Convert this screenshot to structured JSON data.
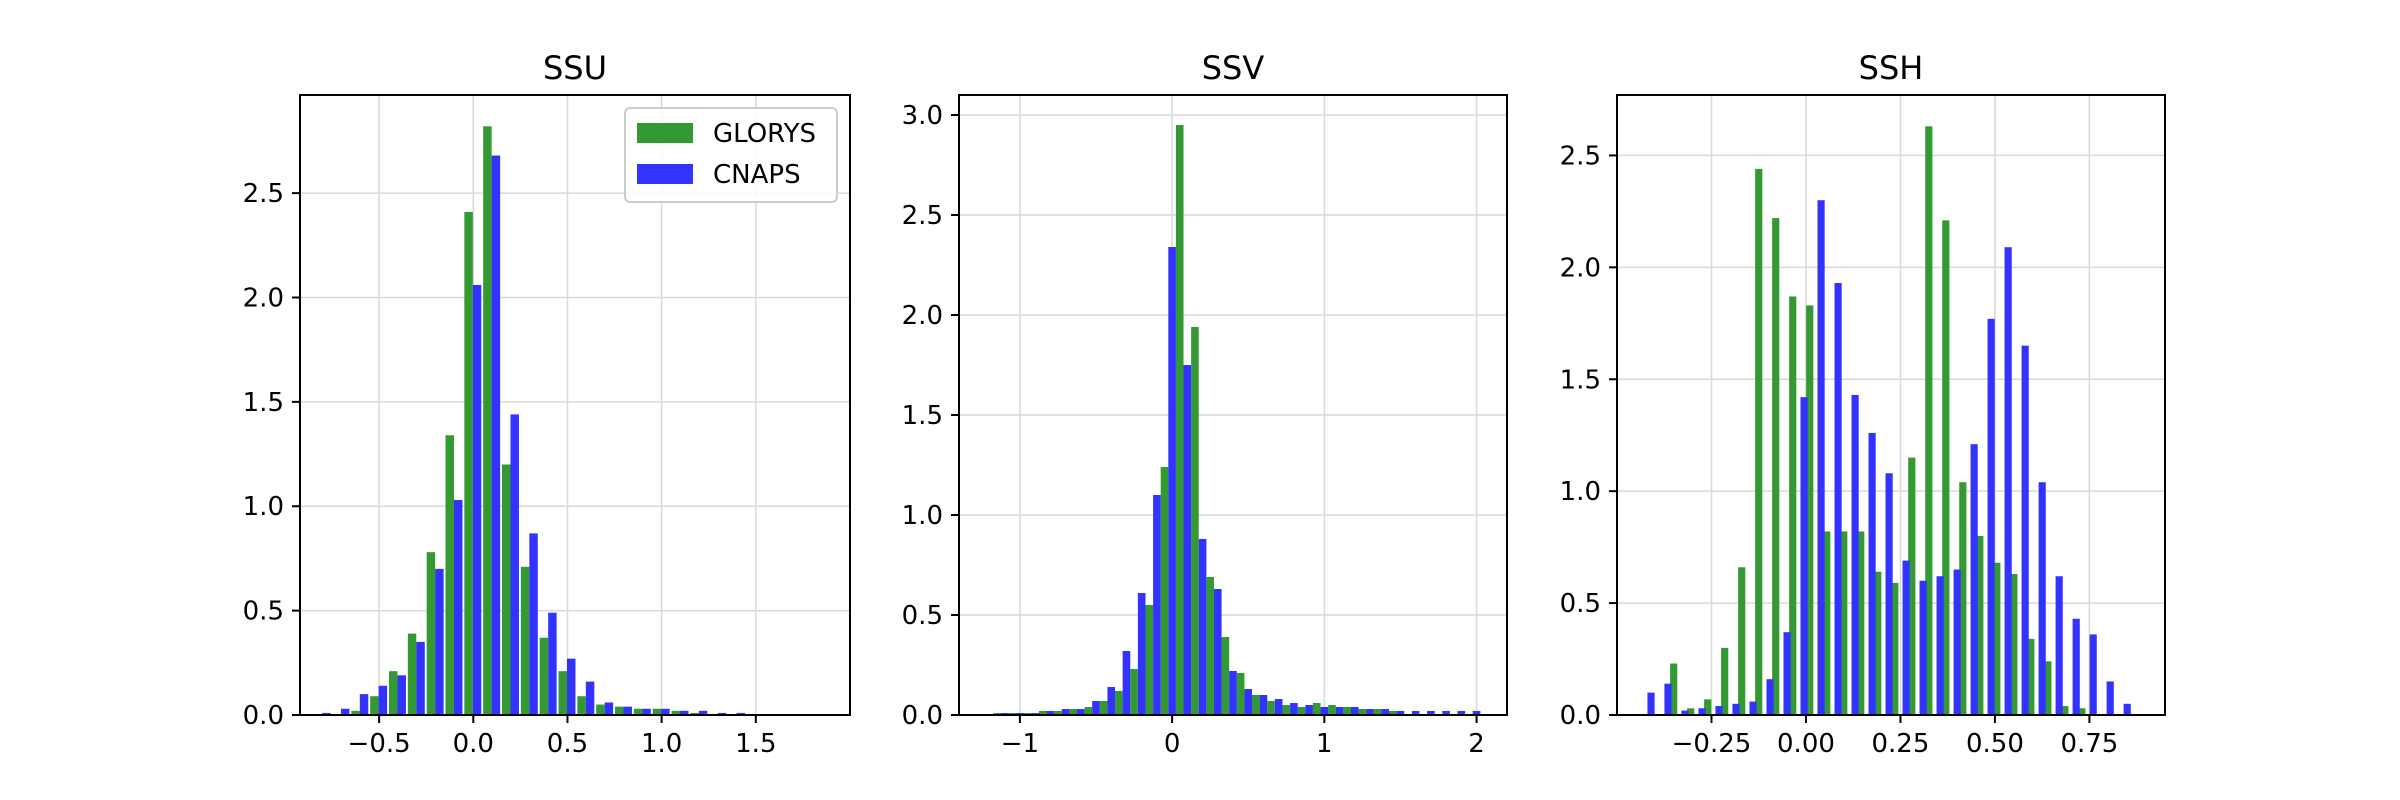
{
  "colors": {
    "glorys": "#339933",
    "cnaps": "#3333ff",
    "grid": "#d9d9d9",
    "axis": "#000000"
  },
  "legend": {
    "placement": "top-right",
    "panel": 0,
    "entries": [
      "GLORYS",
      "CNAPS"
    ]
  },
  "chart_data": [
    {
      "type": "bar",
      "title": "SSU",
      "xlabel": "",
      "ylabel": "",
      "grid": true,
      "xlim": [
        -0.92,
        2.0
      ],
      "ylim": [
        0,
        2.97
      ],
      "xticks": [
        -0.5,
        0.0,
        0.5,
        1.0,
        1.5
      ],
      "xtick_labels": [
        "−0.5",
        "0.0",
        "0.5",
        "1.0",
        "1.5"
      ],
      "yticks": [
        0,
        0.5,
        1.0,
        1.5,
        2.0,
        2.5
      ],
      "ytick_labels": [
        "0.0",
        "0.5",
        "1.0",
        "1.5",
        "2.0",
        "2.5"
      ],
      "bar_width": 0.045,
      "series": [
        {
          "name": "GLORYS",
          "x": [
            -0.625,
            -0.525,
            -0.425,
            -0.325,
            -0.225,
            -0.125,
            -0.025,
            0.075,
            0.175,
            0.275,
            0.375,
            0.475,
            0.575,
            0.675,
            0.775,
            0.875,
            0.975,
            1.075,
            1.175
          ],
          "values": [
            0.02,
            0.09,
            0.21,
            0.39,
            0.78,
            1.34,
            2.41,
            2.82,
            1.2,
            0.71,
            0.37,
            0.21,
            0.09,
            0.05,
            0.04,
            0.03,
            0.03,
            0.02,
            0.01
          ]
        },
        {
          "name": "CNAPS",
          "x": [
            -0.78,
            -0.68,
            -0.58,
            -0.48,
            -0.38,
            -0.28,
            -0.18,
            -0.08,
            0.02,
            0.12,
            0.22,
            0.32,
            0.42,
            0.52,
            0.62,
            0.72,
            0.82,
            0.92,
            1.02,
            1.12,
            1.22,
            1.32,
            1.42
          ],
          "values": [
            0.01,
            0.03,
            0.1,
            0.14,
            0.19,
            0.35,
            0.7,
            1.03,
            2.06,
            2.68,
            1.44,
            0.87,
            0.49,
            0.27,
            0.16,
            0.06,
            0.04,
            0.03,
            0.03,
            0.02,
            0.02,
            0.01,
            0.01
          ]
        }
      ]
    },
    {
      "type": "bar",
      "title": "SSV",
      "xlabel": "",
      "ylabel": "",
      "grid": true,
      "xlim": [
        -1.4,
        2.2
      ],
      "ylim": [
        0,
        3.1
      ],
      "xticks": [
        -1,
        0,
        1,
        2
      ],
      "xtick_labels": [
        "−1",
        "0",
        "1",
        "2"
      ],
      "yticks": [
        0,
        0.5,
        1.0,
        1.5,
        2.0,
        2.5,
        3.0
      ],
      "ytick_labels": [
        "0.0",
        "0.5",
        "1.0",
        "1.5",
        "2.0",
        "2.5",
        "3.0"
      ],
      "bar_width": 0.05,
      "series": [
        {
          "name": "GLORYS",
          "x": [
            -1.15,
            -1.05,
            -0.95,
            -0.85,
            -0.75,
            -0.65,
            -0.55,
            -0.45,
            -0.35,
            -0.25,
            -0.15,
            -0.05,
            0.05,
            0.15,
            0.25,
            0.35,
            0.45,
            0.55,
            0.65,
            0.75,
            0.85,
            0.95,
            1.05,
            1.15,
            1.25,
            1.35,
            1.45
          ],
          "values": [
            0.01,
            0.01,
            0.01,
            0.02,
            0.02,
            0.03,
            0.04,
            0.07,
            0.12,
            0.23,
            0.55,
            1.24,
            2.95,
            1.94,
            0.69,
            0.39,
            0.21,
            0.1,
            0.07,
            0.05,
            0.04,
            0.06,
            0.05,
            0.04,
            0.03,
            0.03,
            0.02
          ]
        },
        {
          "name": "CNAPS",
          "x": [
            -1.1,
            -1.0,
            -0.9,
            -0.8,
            -0.7,
            -0.6,
            -0.5,
            -0.4,
            -0.3,
            -0.2,
            -0.1,
            0.0,
            0.1,
            0.2,
            0.3,
            0.4,
            0.5,
            0.6,
            0.7,
            0.8,
            0.9,
            1.0,
            1.1,
            1.2,
            1.3,
            1.4,
            1.5,
            1.6,
            1.7,
            1.8,
            1.9,
            2.0
          ],
          "values": [
            0.01,
            0.01,
            0.01,
            0.02,
            0.03,
            0.03,
            0.07,
            0.14,
            0.32,
            0.61,
            1.1,
            2.34,
            1.75,
            0.88,
            0.63,
            0.22,
            0.13,
            0.1,
            0.08,
            0.06,
            0.05,
            0.04,
            0.04,
            0.04,
            0.03,
            0.03,
            0.02,
            0.02,
            0.02,
            0.02,
            0.02,
            0.02
          ]
        }
      ]
    },
    {
      "type": "bar",
      "title": "SSH",
      "xlabel": "",
      "ylabel": "",
      "grid": true,
      "xlim": [
        -0.5,
        0.95
      ],
      "ylim": [
        0,
        2.77
      ],
      "xticks": [
        -0.25,
        0.0,
        0.25,
        0.5,
        0.75
      ],
      "xtick_labels": [
        "−0.25",
        "0.00",
        "0.25",
        "0.50",
        "0.75"
      ],
      "yticks": [
        0,
        0.5,
        1.0,
        1.5,
        2.0,
        2.5
      ],
      "ytick_labels": [
        "0.0",
        "0.5",
        "1.0",
        "1.5",
        "2.0",
        "2.5"
      ],
      "bar_width": 0.019,
      "series": [
        {
          "name": "GLORYS",
          "x": [
            -0.35,
            -0.305,
            -0.26,
            -0.215,
            -0.17,
            -0.125,
            -0.08,
            -0.035,
            0.01,
            0.055,
            0.1,
            0.145,
            0.19,
            0.235,
            0.28,
            0.325,
            0.37,
            0.415,
            0.46,
            0.505,
            0.55,
            0.595,
            0.64,
            0.685,
            0.73,
            0.775
          ],
          "values": [
            0.23,
            0.03,
            0.07,
            0.3,
            0.66,
            2.44,
            2.22,
            1.87,
            1.83,
            0.82,
            0.82,
            0.82,
            0.64,
            0.59,
            1.15,
            2.63,
            2.21,
            1.04,
            0.8,
            0.68,
            0.63,
            0.34,
            0.24,
            0.04,
            0.03,
            0.0
          ]
        },
        {
          "name": "CNAPS",
          "x": [
            -0.41,
            -0.365,
            -0.32,
            -0.275,
            -0.23,
            -0.185,
            -0.14,
            -0.095,
            -0.05,
            -0.005,
            0.04,
            0.085,
            0.13,
            0.175,
            0.22,
            0.265,
            0.31,
            0.355,
            0.4,
            0.445,
            0.49,
            0.535,
            0.58,
            0.625,
            0.67,
            0.715,
            0.76,
            0.805,
            0.85
          ],
          "values": [
            0.1,
            0.14,
            0.02,
            0.03,
            0.04,
            0.05,
            0.06,
            0.16,
            0.37,
            1.42,
            2.3,
            1.93,
            1.43,
            1.26,
            1.08,
            0.69,
            0.6,
            0.62,
            0.65,
            1.21,
            1.77,
            2.09,
            1.65,
            1.04,
            0.62,
            0.43,
            0.36,
            0.15,
            0.05
          ]
        }
      ]
    }
  ]
}
